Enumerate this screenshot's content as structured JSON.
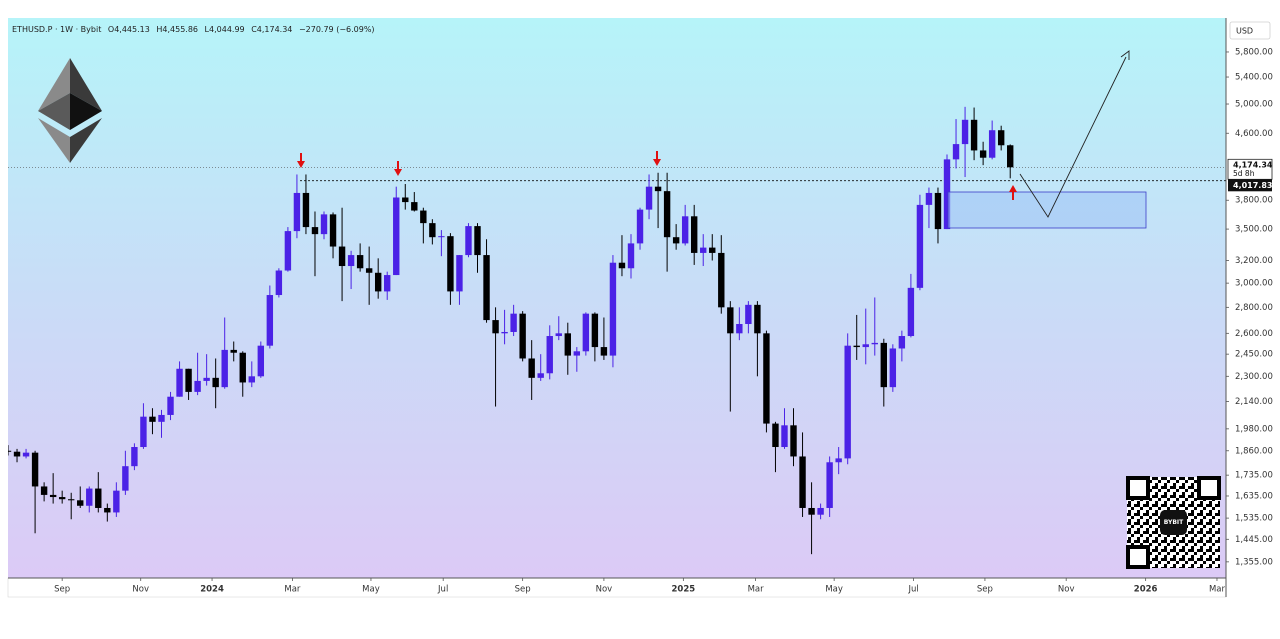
{
  "chart_data": {
    "type": "candlestick",
    "title": "ETHUSD.P · 1W · Bybit",
    "ohlc": [
      "O4,445.13",
      "H4,455.86",
      "L4,044.99",
      "C4,174.34",
      "−270.79 (−6.09%)"
    ],
    "y_axis_unit": "USD",
    "qr_badge": "BYBIT",
    "up_color": "#4b22e6",
    "down_color": "#000000",
    "log_scale": true,
    "grid": false,
    "xlim": [
      0,
      134.9
    ],
    "xticks": [
      {
        "value": 6.0,
        "label": "Sep"
      },
      {
        "value": 14.7,
        "label": "Nov"
      },
      {
        "value": 22.6,
        "label": "2024"
      },
      {
        "value": 31.5,
        "label": "Mar"
      },
      {
        "value": 40.2,
        "label": "May"
      },
      {
        "value": 48.2,
        "label": "Jul"
      },
      {
        "value": 57.0,
        "label": "Sep"
      },
      {
        "value": 66.0,
        "label": "Nov"
      },
      {
        "value": 74.8,
        "label": "2025"
      },
      {
        "value": 82.8,
        "label": "Mar"
      },
      {
        "value": 91.5,
        "label": "May"
      },
      {
        "value": 100.3,
        "label": "Jul"
      },
      {
        "value": 108.2,
        "label": "Sep"
      },
      {
        "value": 117.2,
        "label": "Nov"
      },
      {
        "value": 126.0,
        "label": "2026"
      },
      {
        "value": 133.9,
        "label": "Mar"
      }
    ],
    "ylim": [
      1294,
      6390
    ],
    "yticks": [
      {
        "value": 1355,
        "label": "1,355.00"
      },
      {
        "value": 1445,
        "label": "1,445.00"
      },
      {
        "value": 1535,
        "label": "1,535.00"
      },
      {
        "value": 1635,
        "label": "1,635.00"
      },
      {
        "value": 1735,
        "label": "1,735.00"
      },
      {
        "value": 1860,
        "label": "1,860.00"
      },
      {
        "value": 1980,
        "label": "1,980.00"
      },
      {
        "value": 2140,
        "label": "2,140.00"
      },
      {
        "value": 2300,
        "label": "2,300.00"
      },
      {
        "value": 2450,
        "label": "2,450.00"
      },
      {
        "value": 2600,
        "label": "2,600.00"
      },
      {
        "value": 2800,
        "label": "2,800.00"
      },
      {
        "value": 3000,
        "label": "3,000.00"
      },
      {
        "value": 3200,
        "label": "3,200.00"
      },
      {
        "value": 3500,
        "label": "3,500.00"
      },
      {
        "value": 3800,
        "label": "3,800.00"
      },
      {
        "value": 4600,
        "label": "4,600.00"
      },
      {
        "value": 5000,
        "label": "5,000.00"
      },
      {
        "value": 5400,
        "label": "5,400.00"
      },
      {
        "value": 5800,
        "label": "5,800.00"
      }
    ],
    "price_labels": [
      {
        "value": 4174.34,
        "label": "4,174.34",
        "sub": "5d 8h"
      },
      {
        "value": 4017.83,
        "label": "4,017.83"
      }
    ],
    "x": [
      0,
      1,
      2,
      3,
      4,
      5,
      6,
      7,
      8,
      9,
      10,
      11,
      12,
      13,
      14,
      15,
      16,
      17,
      18,
      19,
      20,
      21,
      22,
      23,
      24,
      25,
      26,
      27,
      28,
      29,
      30,
      31,
      32,
      33,
      34,
      35,
      36,
      37,
      38,
      39,
      40,
      41,
      42,
      43,
      44,
      45,
      46,
      47,
      48,
      49,
      50,
      51,
      52,
      53,
      54,
      55,
      56,
      57,
      58,
      59,
      60,
      61,
      62,
      63,
      64,
      65,
      66,
      67,
      68,
      69,
      70,
      71,
      72,
      73,
      74,
      75,
      76,
      77,
      78,
      79,
      80,
      81,
      82,
      83,
      84,
      85,
      86,
      87,
      88,
      89,
      90,
      91,
      92,
      93,
      94,
      95,
      96,
      97,
      98,
      99,
      100,
      101,
      102,
      103,
      104,
      105,
      106,
      107,
      108,
      109,
      110,
      111
    ],
    "open": [
      1860,
      1855,
      1830,
      1850,
      1680,
      1640,
      1630,
      1620,
      1615,
      1590,
      1670,
      1580,
      1560,
      1660,
      1780,
      1880,
      2050,
      2020,
      2060,
      2170,
      2350,
      2200,
      2270,
      2290,
      2230,
      2480,
      2460,
      2260,
      2300,
      2510,
      2900,
      3110,
      3480,
      3880,
      3520,
      3450,
      3650,
      3330,
      3150,
      3250,
      3130,
      3090,
      2930,
      3070,
      3830,
      3780,
      3690,
      3560,
      3420,
      3430,
      2930,
      3250,
      3530,
      3250,
      2700,
      2600,
      2610,
      2750,
      2420,
      2290,
      2320,
      2580,
      2600,
      2440,
      2470,
      2750,
      2500,
      2440,
      3180,
      3130,
      3360,
      3700,
      3950,
      3900,
      3420,
      3360,
      3630,
      3270,
      3320,
      3270,
      2800,
      2600,
      2670,
      2820,
      2600,
      2010,
      1880,
      2000,
      1830,
      1580,
      1550,
      1580,
      1800,
      1820,
      2510,
      2500,
      2520,
      2530,
      2230,
      2490,
      2580,
      2960,
      3750,
      3880,
      3500,
      4270,
      4460,
      4780,
      4380,
      4290,
      4640,
      4445.13
    ],
    "high": [
      1890,
      1870,
      1870,
      1860,
      1700,
      1745,
      1660,
      1650,
      1680,
      1680,
      1750,
      1600,
      1700,
      1860,
      1900,
      2130,
      2100,
      2090,
      2200,
      2400,
      2350,
      2460,
      2450,
      2420,
      2720,
      2540,
      2470,
      2400,
      2540,
      2980,
      3130,
      3520,
      4090,
      4090,
      3680,
      3680,
      3670,
      3720,
      3290,
      3360,
      3330,
      3220,
      3100,
      3950,
      3980,
      3890,
      3720,
      3600,
      3490,
      3460,
      3250,
      3560,
      3560,
      3400,
      2800,
      2780,
      2820,
      2770,
      2550,
      2450,
      2660,
      2730,
      2680,
      2500,
      2760,
      2760,
      2720,
      3250,
      3440,
      3450,
      3720,
      4090,
      4110,
      4110,
      3550,
      3750,
      3750,
      3450,
      3450,
      3440,
      2850,
      2800,
      2850,
      2850,
      2620,
      2020,
      2100,
      2100,
      1960,
      1700,
      1600,
      1830,
      1880,
      2600,
      2740,
      2790,
      2880,
      2560,
      2520,
      2620,
      3080,
      3860,
      3940,
      3940,
      4330,
      4790,
      4960,
      4950,
      4490,
      4770,
      4700,
      4455.86
    ],
    "low": [
      1835,
      1800,
      1820,
      1470,
      1610,
      1600,
      1600,
      1530,
      1580,
      1560,
      1560,
      1520,
      1540,
      1640,
      1760,
      1870,
      1950,
      1930,
      2030,
      2170,
      2150,
      2180,
      2240,
      2100,
      2220,
      2400,
      2170,
      2230,
      2290,
      2490,
      2880,
      3100,
      3410,
      3450,
      3060,
      3400,
      3220,
      2850,
      2950,
      3100,
      2820,
      2870,
      2860,
      3070,
      3700,
      3680,
      3360,
      3350,
      3240,
      2820,
      2820,
      3230,
      3090,
      2680,
      2110,
      2520,
      2580,
      2400,
      2150,
      2270,
      2280,
      2550,
      2310,
      2330,
      2440,
      2400,
      2410,
      2360,
      3060,
      3040,
      3300,
      3600,
      3510,
      3100,
      3300,
      3340,
      3160,
      3150,
      3200,
      2750,
      2080,
      2550,
      2600,
      2300,
      1960,
      1750,
      1870,
      1780,
      1540,
      1385,
      1530,
      1540,
      1740,
      1790,
      2410,
      2380,
      2440,
      2110,
      2200,
      2400,
      2570,
      2940,
      3510,
      3360,
      3500,
      4160,
      4060,
      4260,
      4200,
      4270,
      4380,
      4044.99
    ],
    "close": [
      1855,
      1830,
      1850,
      1680,
      1640,
      1630,
      1620,
      1615,
      1590,
      1670,
      1580,
      1560,
      1660,
      1780,
      1880,
      2050,
      2020,
      2060,
      2170,
      2350,
      2200,
      2270,
      2290,
      2230,
      2480,
      2460,
      2260,
      2300,
      2510,
      2900,
      3110,
      3480,
      3880,
      3520,
      3450,
      3650,
      3330,
      3150,
      3250,
      3130,
      3090,
      2930,
      3070,
      3830,
      3780,
      3690,
      3560,
      3420,
      3430,
      2930,
      3250,
      3530,
      3250,
      2700,
      2600,
      2610,
      2750,
      2420,
      2290,
      2320,
      2580,
      2600,
      2440,
      2470,
      2750,
      2500,
      2440,
      3180,
      3130,
      3360,
      3700,
      3950,
      3900,
      3420,
      3360,
      3630,
      3270,
      3320,
      3270,
      2800,
      2600,
      2670,
      2820,
      2600,
      2010,
      1880,
      2000,
      1830,
      1580,
      1550,
      1580,
      1800,
      1820,
      2510,
      2500,
      2520,
      2530,
      2230,
      2490,
      2580,
      2960,
      3750,
      3880,
      3500,
      4270,
      4460,
      4780,
      4380,
      4290,
      4640,
      4445,
      4174.34
    ]
  }
}
